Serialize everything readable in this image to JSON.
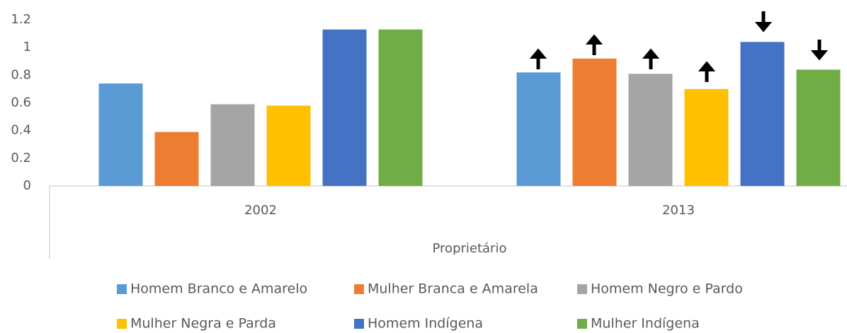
{
  "chart_data": {
    "type": "bar",
    "categories": [
      "2002",
      "2013"
    ],
    "xlabel": "Proprietário",
    "series": [
      {
        "name": "Homem Branco e Amarelo",
        "color": "#5b9bd5",
        "values": [
          0.74,
          0.82
        ]
      },
      {
        "name": "Mulher Branca e Amarela",
        "color": "#ed7d31",
        "values": [
          0.39,
          0.92
        ]
      },
      {
        "name": "Homem Negro e Pardo",
        "color": "#a5a5a5",
        "values": [
          0.59,
          0.81
        ]
      },
      {
        "name": "Mulher Negra e Parda",
        "color": "#ffc000",
        "values": [
          0.58,
          0.7
        ]
      },
      {
        "name": "Homem Indígena",
        "color": "#4472c4",
        "values": [
          1.13,
          1.04
        ]
      },
      {
        "name": "Mulher Indígena",
        "color": "#70ad47",
        "values": [
          1.13,
          0.84
        ]
      }
    ],
    "ylim": [
      0,
      1.2
    ],
    "yticks": [
      0,
      0.2,
      0.4,
      0.6,
      0.8,
      1,
      1.2
    ],
    "grid": false,
    "legend": "bottom"
  }
}
